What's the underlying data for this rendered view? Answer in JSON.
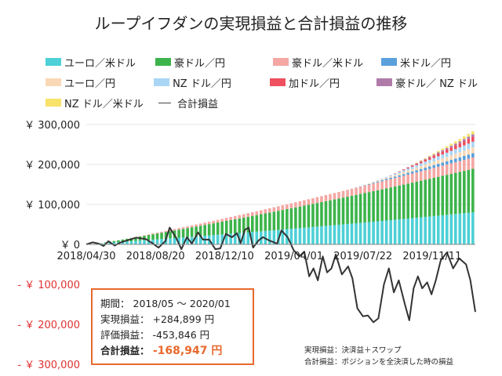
{
  "chart_data": {
    "type": "bar",
    "stacked": true,
    "title": "ループイフダンの実現損益と合計損益の推移",
    "x_ticks": [
      "2018/04/30",
      "2018/08/20",
      "2018/12/10",
      "2019/04/01",
      "2019/07/22",
      "2019/11/11"
    ],
    "y_ticks": [
      {
        "value": 300000,
        "label": "￥ 300,000",
        "color": "#222222"
      },
      {
        "value": 200000,
        "label": "￥ 200,000",
        "color": "#222222"
      },
      {
        "value": 100000,
        "label": "￥ 100,000",
        "color": "#222222"
      },
      {
        "value": 0,
        "label": "￥ 0",
        "color": "#222222"
      },
      {
        "value": -100000,
        "label": "- ￥ 100,000",
        "color": "#e03030"
      },
      {
        "value": -200000,
        "label": "- ￥ 200,000",
        "color": "#e03030"
      },
      {
        "value": -300000,
        "label": "- ￥ 300,000",
        "color": "#e03030"
      }
    ],
    "ylim": [
      -300000,
      300000
    ],
    "x_range": [
      "2018-04-30",
      "2020-01-20"
    ],
    "legend_position": "top",
    "series": [
      {
        "name": "ユーロ／米ドル",
        "color": "#4dd0d6",
        "start": "2018-05-01",
        "end": "2020-01-20",
        "final_value": 81000
      },
      {
        "name": "豪ドル／円",
        "color": "#3cb44b",
        "start": "2018-05-20",
        "end": "2020-01-20",
        "final_value": 108000
      },
      {
        "name": "豪ドル／米ドル",
        "color": "#f4a7a3",
        "start": "2018-07-01",
        "end": "2020-01-20",
        "final_value": 28000
      },
      {
        "name": "米ドル／円",
        "color": "#5aa0dc",
        "start": "2019-07-01",
        "end": "2020-01-20",
        "final_value": 11000
      },
      {
        "name": "ユーロ／円",
        "color": "#f9d9b5",
        "start": "2019-07-15",
        "end": "2020-01-20",
        "final_value": 15000
      },
      {
        "name": "NZ ドル／円",
        "color": "#a9d6f5",
        "start": "2019-08-01",
        "end": "2020-01-20",
        "final_value": 15000
      },
      {
        "name": "加ドル／円",
        "color": "#ee5060",
        "start": "2019-09-01",
        "end": "2020-01-20",
        "final_value": 13000
      },
      {
        "name": "豪ドル／ NZ ドル",
        "color": "#b07ba8",
        "start": "2019-09-15",
        "end": "2020-01-20",
        "final_value": 6000
      },
      {
        "name": "NZ ドル／米ドル",
        "color": "#f7e26a",
        "start": "2019-10-01",
        "end": "2020-01-20",
        "final_value": 8000
      }
    ],
    "total_line": {
      "name": "合計損益",
      "color": "#333333",
      "points": [
        [
          "2018-04-30",
          0
        ],
        [
          "2018-05-10",
          5000
        ],
        [
          "2018-05-20",
          2000
        ],
        [
          "2018-05-28",
          -4000
        ],
        [
          "2018-06-05",
          8000
        ],
        [
          "2018-06-15",
          -3000
        ],
        [
          "2018-06-25",
          5000
        ],
        [
          "2018-07-05",
          10000
        ],
        [
          "2018-07-20",
          17000
        ],
        [
          "2018-08-05",
          13000
        ],
        [
          "2018-08-15",
          3000
        ],
        [
          "2018-08-25",
          -8000
        ],
        [
          "2018-09-05",
          8000
        ],
        [
          "2018-09-12",
          42000
        ],
        [
          "2018-09-22",
          18000
        ],
        [
          "2018-10-01",
          -12000
        ],
        [
          "2018-10-10",
          18000
        ],
        [
          "2018-10-18",
          2000
        ],
        [
          "2018-10-28",
          30000
        ],
        [
          "2018-11-05",
          12000
        ],
        [
          "2018-11-15",
          12000
        ],
        [
          "2018-11-25",
          -12000
        ],
        [
          "2018-12-03",
          -10000
        ],
        [
          "2018-12-12",
          26000
        ],
        [
          "2018-12-22",
          18000
        ],
        [
          "2018-12-30",
          28000
        ],
        [
          "2019-01-05",
          3000
        ],
        [
          "2019-01-12",
          37000
        ],
        [
          "2019-01-18",
          42000
        ],
        [
          "2019-01-25",
          -8000
        ],
        [
          "2019-02-03",
          10000
        ],
        [
          "2019-02-10",
          18000
        ],
        [
          "2019-02-20",
          10000
        ],
        [
          "2019-03-05",
          2000
        ],
        [
          "2019-03-12",
          35000
        ],
        [
          "2019-03-22",
          18000
        ],
        [
          "2019-04-01",
          -15000
        ],
        [
          "2019-04-10",
          -30000
        ],
        [
          "2019-04-18",
          -18000
        ],
        [
          "2019-04-26",
          -80000
        ],
        [
          "2019-05-03",
          -60000
        ],
        [
          "2019-05-10",
          -90000
        ],
        [
          "2019-05-18",
          -30000
        ],
        [
          "2019-05-25",
          -70000
        ],
        [
          "2019-06-01",
          -60000
        ],
        [
          "2019-06-08",
          -25000
        ],
        [
          "2019-06-18",
          -75000
        ],
        [
          "2019-06-28",
          -55000
        ],
        [
          "2019-07-05",
          -85000
        ],
        [
          "2019-07-13",
          -160000
        ],
        [
          "2019-07-22",
          -180000
        ],
        [
          "2019-07-30",
          -178000
        ],
        [
          "2019-08-08",
          -195000
        ],
        [
          "2019-08-16",
          -185000
        ],
        [
          "2019-08-25",
          -100000
        ],
        [
          "2019-09-02",
          -60000
        ],
        [
          "2019-09-10",
          -120000
        ],
        [
          "2019-09-18",
          -90000
        ],
        [
          "2019-09-28",
          -150000
        ],
        [
          "2019-10-05",
          -190000
        ],
        [
          "2019-10-12",
          -110000
        ],
        [
          "2019-10-19",
          -80000
        ],
        [
          "2019-10-26",
          -110000
        ],
        [
          "2019-11-03",
          -95000
        ],
        [
          "2019-11-10",
          -125000
        ],
        [
          "2019-11-17",
          -90000
        ],
        [
          "2019-11-25",
          -40000
        ],
        [
          "2019-12-05",
          -20000
        ],
        [
          "2019-12-15",
          -60000
        ],
        [
          "2019-12-25",
          -35000
        ],
        [
          "2020-01-05",
          -50000
        ],
        [
          "2020-01-12",
          -90000
        ],
        [
          "2020-01-20",
          -168947
        ]
      ]
    }
  },
  "summary": {
    "period_label": "期間：",
    "period_value": "2018/05 〜 2020/01",
    "realized_label": "実現損益：",
    "realized_value": "+284,899 円",
    "unrealized_label": "評価損益：",
    "unrealized_value": "-453,846 円",
    "total_label": "合計損益：",
    "total_value": "-168,947 円"
  },
  "footnotes": {
    "line1": "実現損益：決済益＋スワップ",
    "line2": "合計損益：ポジションを全決済した時の損益"
  },
  "colors": {
    "accent": "#e8692e",
    "negative_tick": "#e03030"
  }
}
